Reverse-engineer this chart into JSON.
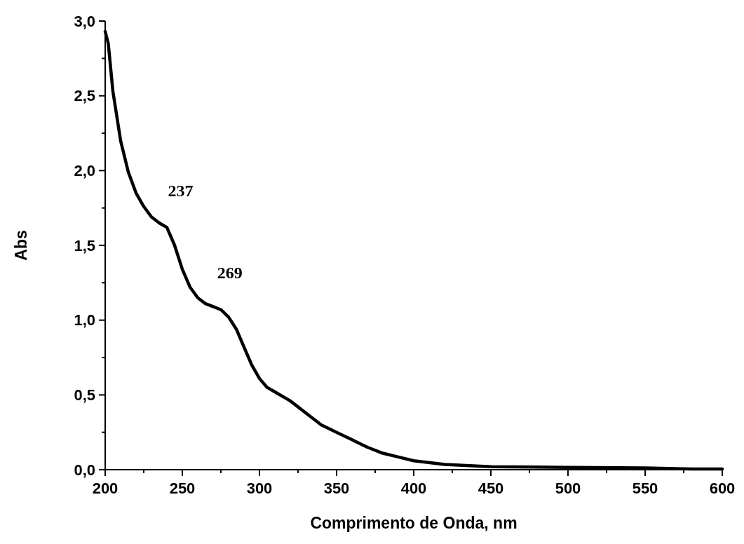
{
  "chart_data": {
    "type": "line",
    "xlabel": "Comprimento de Onda, nm",
    "ylabel": "Abs",
    "xlim": [
      200,
      600
    ],
    "ylim": [
      0,
      3
    ],
    "xticks": [
      200,
      {
        "value": 225,
        "label": null
      },
      250,
      {
        "value": 275,
        "label": null
      },
      300,
      {
        "value": 325,
        "label": null
      },
      350,
      {
        "value": 375,
        "label": null
      },
      400,
      {
        "value": 425,
        "label": null
      },
      450,
      {
        "value": 475,
        "label": null
      },
      500,
      {
        "value": 525,
        "label": null
      },
      550,
      {
        "value": 575,
        "label": null
      },
      600
    ],
    "yticks": [
      {
        "value": 0,
        "label": "0,0"
      },
      {
        "value": 0.25,
        "label": null
      },
      {
        "value": 0.5,
        "label": "0,5"
      },
      {
        "value": 0.75,
        "label": null
      },
      {
        "value": 1,
        "label": "1,0"
      },
      {
        "value": 1.25,
        "label": null
      },
      {
        "value": 1.5,
        "label": "1,5"
      },
      {
        "value": 1.75,
        "label": null
      },
      {
        "value": 2,
        "label": "2,0"
      },
      {
        "value": 2.25,
        "label": null
      },
      {
        "value": 2.5,
        "label": "2,5"
      },
      {
        "value": 2.75,
        "label": null
      },
      {
        "value": 3,
        "label": "3,0"
      }
    ],
    "grid": false,
    "line_style": "solid",
    "series": [
      {
        "color": "#000000",
        "x": [
          200,
          202,
          205,
          210,
          215,
          220,
          225,
          230,
          235,
          240,
          245,
          250,
          255,
          260,
          265,
          270,
          275,
          280,
          285,
          290,
          295,
          300,
          305,
          310,
          320,
          330,
          340,
          350,
          360,
          370,
          380,
          390,
          400,
          420,
          450,
          500,
          550,
          580,
          600
        ],
        "values": [
          2.93,
          2.85,
          2.53,
          2.2,
          1.99,
          1.85,
          1.76,
          1.69,
          1.65,
          1.62,
          1.5,
          1.34,
          1.22,
          1.15,
          1.11,
          1.09,
          1.07,
          1.02,
          0.94,
          0.82,
          0.7,
          0.61,
          0.55,
          0.52,
          0.46,
          0.38,
          0.3,
          0.25,
          0.2,
          0.15,
          0.11,
          0.085,
          0.06,
          0.035,
          0.02,
          0.015,
          0.012,
          0.005,
          0.005
        ]
      }
    ],
    "annotations": [
      {
        "text": "237",
        "x": 237,
        "y": 1.64
      },
      {
        "text": "269",
        "x": 269,
        "y": 1.09
      }
    ]
  }
}
